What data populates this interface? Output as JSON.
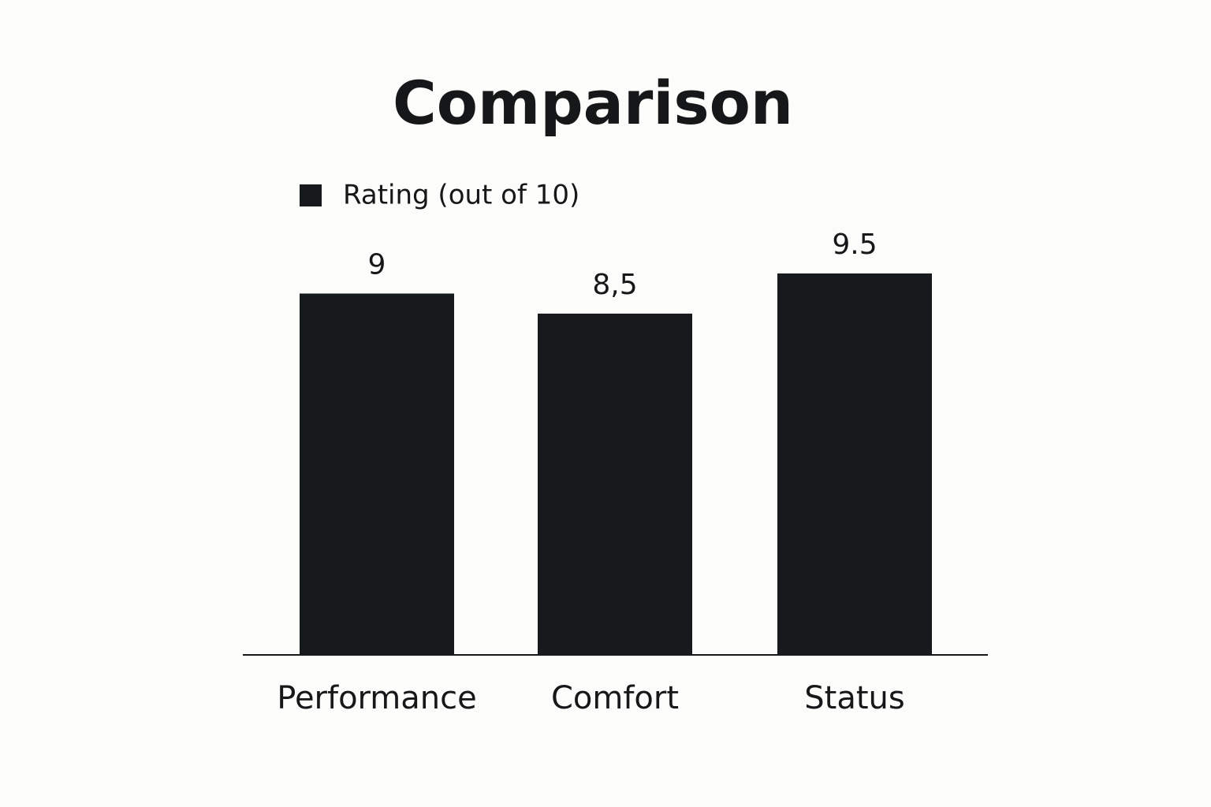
{
  "chart_data": {
    "type": "bar",
    "title": "Comparison",
    "categories": [
      "Performance",
      "Comfort",
      "Status"
    ],
    "series": [
      {
        "name": "Rating (out of 10)",
        "color": "#171a1d",
        "values": [
          9,
          8.5,
          9.5
        ],
        "value_labels": [
          "9",
          "8,5",
          "9.5"
        ]
      }
    ]
  }
}
